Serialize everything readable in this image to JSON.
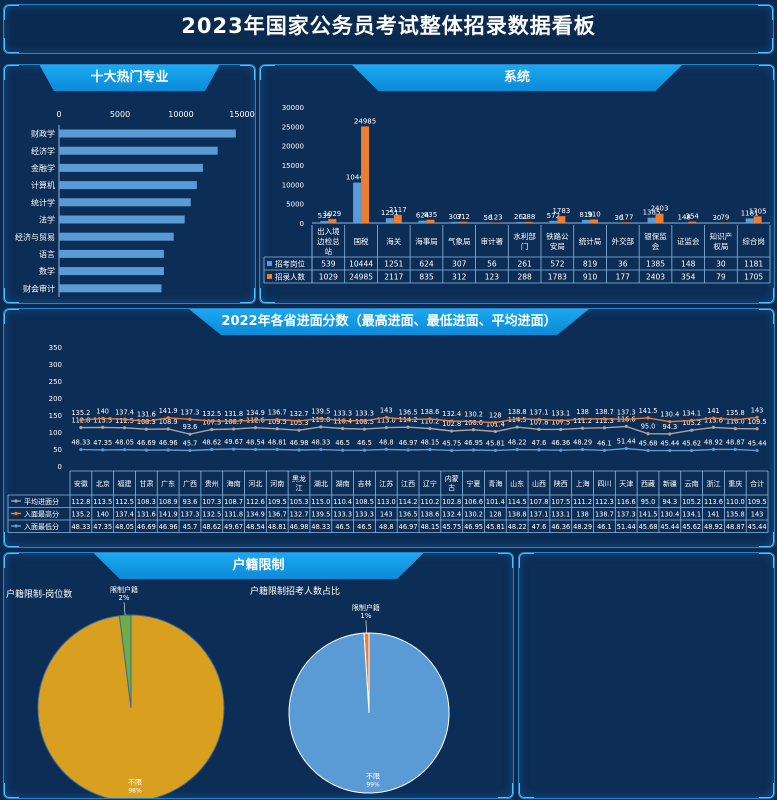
{
  "page": {
    "title": "2023年国家公务员考试整体招录数据看板"
  },
  "panels": {
    "majors": "十大热门专业",
    "system": "系统",
    "scores": "2022年各省进面分数（最高进面、最低进面、平均进面）",
    "hukou": "户籍限制"
  },
  "colors": {
    "bg": "#0b2a4f",
    "bar": "#5b9bd5",
    "orange": "#ed7d31",
    "gold": "#d9a020",
    "green": "#70ad47",
    "grey": "#a5a5a5"
  },
  "chart_data": [
    {
      "type": "bar",
      "orientation": "horizontal",
      "categories": [
        "财政学",
        "经济学",
        "金融学",
        "计算机",
        "统计学",
        "法学",
        "经济与贸易",
        "语言",
        "数学",
        "财会审计"
      ],
      "values": [
        14500,
        13000,
        11800,
        11300,
        10800,
        10300,
        9400,
        8600,
        8600,
        8400
      ],
      "xticks": [
        "0",
        "5000",
        "10000",
        "15000"
      ],
      "xlim": [
        0,
        15000
      ]
    },
    {
      "type": "bar",
      "categories": [
        "出入境边检总站",
        "国税",
        "海关",
        "海事局",
        "气象局",
        "审计署",
        "水利部门",
        "铁路公安局",
        "统计局",
        "外交部",
        "银保监会",
        "证监会",
        "知识产权局",
        "综合岗"
      ],
      "series": [
        {
          "name": "招考岗位",
          "values": [
            539,
            10444,
            1251,
            624,
            307,
            56,
            261,
            572,
            819,
            36,
            1385,
            148,
            30,
            1181
          ]
        },
        {
          "name": "招录人数",
          "values": [
            1029,
            24985,
            2117,
            835,
            312,
            123,
            288,
            1783,
            910,
            177,
            2403,
            354,
            79,
            1705
          ]
        }
      ],
      "yticks": [
        "0",
        "5000",
        "10000",
        "15000",
        "20000",
        "25000",
        "30000"
      ],
      "ylim": [
        0,
        30000
      ]
    },
    {
      "type": "line",
      "categories": [
        "安徽",
        "北京",
        "福建",
        "甘肃",
        "广东",
        "广西",
        "贵州",
        "海南",
        "河北",
        "河南",
        "黑龙江",
        "湖北",
        "湖南",
        "吉林",
        "江苏",
        "江西",
        "辽宁",
        "内蒙古",
        "宁夏",
        "青海",
        "山东",
        "山西",
        "陕西",
        "上海",
        "四川",
        "天津",
        "西藏",
        "新疆",
        "云南",
        "浙江",
        "重庆",
        "合计"
      ],
      "series": [
        {
          "name": "平均进面分",
          "labels": [
            "112.8",
            "113.5",
            "112.5",
            "108.3",
            "108.9",
            "93.6",
            "107.3",
            "108.7",
            "112.6",
            "109.5",
            "105.3",
            "115.0",
            "110.4",
            "108.5",
            "113.0",
            "114.2",
            "110.2",
            "102.8",
            "106.6",
            "101.4",
            "114.5",
            "107.8",
            "107.5",
            "111.2",
            "112.3",
            "116.6",
            "95.0",
            "94.3",
            "105.2",
            "113.6",
            "110.0",
            "109.5"
          ]
        },
        {
          "name": "入面最高分",
          "labels": [
            "135.2",
            "140",
            "137.4",
            "131.6",
            "141.9",
            "137.3",
            "132.5",
            "131.8",
            "134.9",
            "136.7",
            "132.7",
            "139.5",
            "133.3",
            "133.3",
            "143",
            "136.5",
            "138.6",
            "132.4",
            "130.2",
            "128",
            "138.8",
            "137.1",
            "133.1",
            "138",
            "138.7",
            "137.3",
            "141.5",
            "130.4",
            "134.1",
            "141",
            "135.8",
            "143"
          ]
        },
        {
          "name": "入面最低分",
          "labels": [
            "48.33",
            "47.35",
            "48.05",
            "46.69",
            "46.96",
            "45.7",
            "48.62",
            "49.67",
            "48.54",
            "48.81",
            "46.98",
            "48.33",
            "46.5",
            "46.5",
            "48.8",
            "46.97",
            "48.15",
            "45.75",
            "46.95",
            "45.81",
            "48.22",
            "47.6",
            "46.36",
            "48.29",
            "46.1",
            "51.44",
            "45.68",
            "45.44",
            "45.62",
            "48.92",
            "48.87",
            "45.44"
          ]
        }
      ],
      "yticks": [
        "0",
        "50",
        "100",
        "150",
        "200",
        "250",
        "300",
        "350"
      ],
      "ylim": [
        0,
        350
      ]
    },
    {
      "type": "pie",
      "title": "户籍限制-岗位数",
      "slices": [
        {
          "label": "不限",
          "percent": "98%",
          "value": 98
        },
        {
          "label": "限制户籍",
          "percent": "2%",
          "value": 2
        }
      ]
    },
    {
      "type": "pie",
      "title": "户籍限制招考人数占比",
      "slices": [
        {
          "label": "不限",
          "percent": "99%",
          "value": 99
        },
        {
          "label": "限制户籍",
          "percent": "1%",
          "value": 1
        }
      ]
    }
  ]
}
